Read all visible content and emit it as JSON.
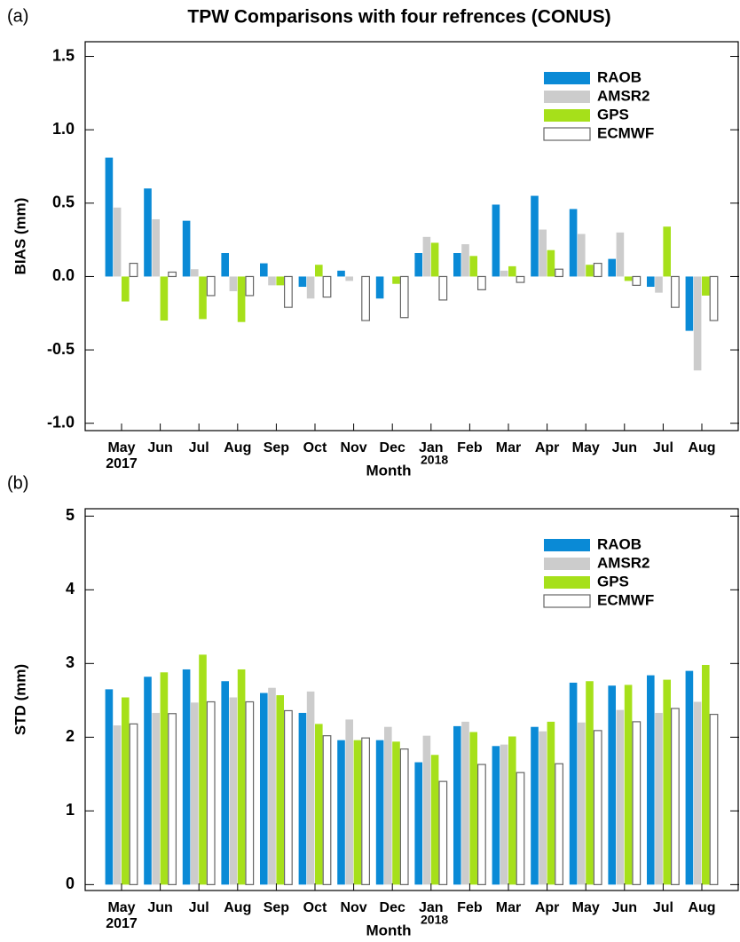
{
  "chart_data": [
    {
      "type": "bar",
      "panel_label": "(a)",
      "title": "TPW Comparisons with four refrences (CONUS)",
      "y_label": "BIAS (mm)",
      "x_label": "Month",
      "annotations": [
        "2017",
        "2018"
      ],
      "categories": [
        "May",
        "Jun",
        "Jul",
        "Aug",
        "Sep",
        "Oct",
        "Nov",
        "Dec",
        "Jan",
        "Feb",
        "Mar",
        "Apr",
        "May",
        "Jun",
        "Jul",
        "Aug"
      ],
      "series": [
        {
          "name": "RAOB",
          "color": "#0a8ad6",
          "values": [
            0.81,
            0.6,
            0.38,
            0.16,
            0.09,
            -0.07,
            0.04,
            -0.15,
            0.16,
            0.16,
            0.49,
            0.55,
            0.46,
            0.12,
            -0.07,
            -0.37
          ]
        },
        {
          "name": "AMSR2",
          "color": "#cccccc",
          "values": [
            0.47,
            0.39,
            0.05,
            -0.1,
            -0.06,
            -0.15,
            -0.03,
            0.0,
            0.27,
            0.22,
            0.04,
            0.32,
            0.29,
            0.3,
            -0.11,
            -0.64
          ]
        },
        {
          "name": "GPS",
          "color": "#a6e01a",
          "values": [
            -0.17,
            -0.3,
            -0.29,
            -0.31,
            -0.06,
            0.08,
            0.0,
            -0.05,
            0.23,
            0.14,
            0.07,
            0.18,
            0.08,
            -0.03,
            0.34,
            -0.13
          ]
        },
        {
          "name": "ECMWF",
          "color": "#ffffff",
          "values": [
            0.09,
            0.03,
            -0.13,
            -0.13,
            -0.21,
            -0.14,
            -0.3,
            -0.28,
            -0.16,
            -0.09,
            -0.04,
            0.05,
            0.09,
            -0.06,
            -0.21,
            -0.3
          ]
        }
      ],
      "ylim": [
        -1.05,
        1.6
      ],
      "yticks": [
        {
          "value": -1.0,
          "label": "-1.0"
        },
        {
          "value": -0.5,
          "label": "-0.5"
        },
        {
          "value": 0,
          "label": "0.0"
        },
        {
          "value": 0.5,
          "label": "0.5"
        },
        {
          "value": 1.0,
          "label": "1.0"
        },
        {
          "value": 1.5,
          "label": "1.5"
        }
      ],
      "legend": "upper right",
      "outline": "#666666"
    },
    {
      "type": "bar",
      "panel_label": "(b)",
      "y_label": "STD (mm)",
      "x_label": "Month",
      "annotations": [
        "2017",
        "2018"
      ],
      "categories": [
        "May",
        "Jun",
        "Jul",
        "Aug",
        "Sep",
        "Oct",
        "Nov",
        "Dec",
        "Jan",
        "Feb",
        "Mar",
        "Apr",
        "May",
        "Jun",
        "Jul",
        "Aug"
      ],
      "series": [
        {
          "name": "RAOB",
          "color": "#0a8ad6",
          "values": [
            2.65,
            2.82,
            2.92,
            2.76,
            2.6,
            2.33,
            1.96,
            1.96,
            1.66,
            2.15,
            1.88,
            2.14,
            2.74,
            2.7,
            2.84,
            2.9
          ]
        },
        {
          "name": "AMSR2",
          "color": "#cccccc",
          "values": [
            2.16,
            2.33,
            2.47,
            2.54,
            2.67,
            2.62,
            2.24,
            2.14,
            2.02,
            2.21,
            1.9,
            2.08,
            2.2,
            2.37,
            2.33,
            2.48
          ]
        },
        {
          "name": "GPS",
          "color": "#a6e01a",
          "values": [
            2.54,
            2.88,
            3.12,
            2.92,
            2.57,
            2.18,
            1.96,
            1.94,
            1.76,
            2.07,
            2.01,
            2.21,
            2.76,
            2.71,
            2.78,
            2.98
          ]
        },
        {
          "name": "ECMWF",
          "color": "#ffffff",
          "values": [
            2.18,
            2.32,
            2.48,
            2.48,
            2.36,
            2.02,
            1.99,
            1.84,
            1.4,
            1.63,
            1.52,
            1.64,
            2.09,
            2.21,
            2.39,
            2.31
          ]
        }
      ],
      "ylim": [
        -0.08,
        5.1
      ],
      "yticks": [
        0,
        1,
        2,
        3,
        4,
        5
      ],
      "legend": "upper right",
      "outline": "#666666"
    }
  ]
}
